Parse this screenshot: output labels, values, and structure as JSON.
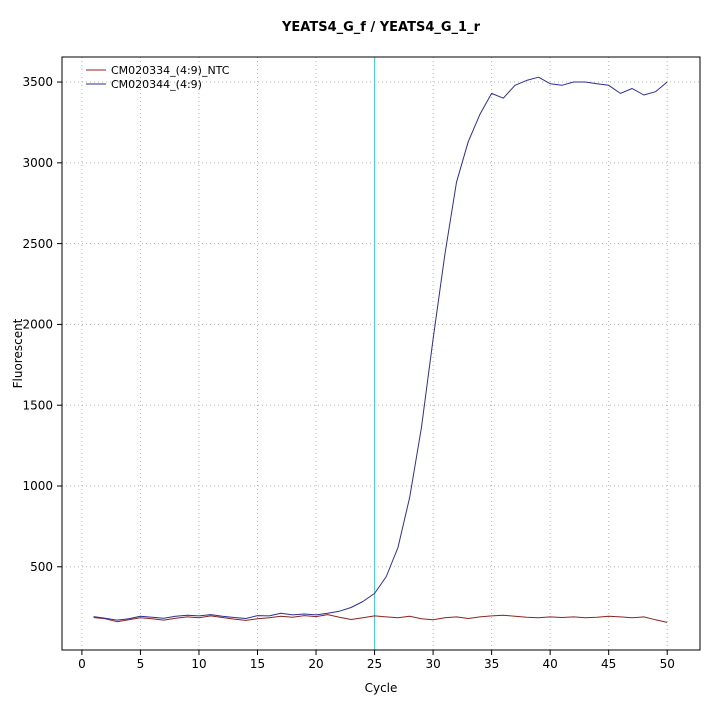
{
  "chart_data": {
    "type": "line",
    "title": "YEATS4_G_f / YEATS4_G_1_r",
    "xlabel": "Cycle",
    "ylabel": "Fluorescent",
    "xlim": [
      -1.7,
      52.8
    ],
    "ylim": [
      -15,
      3655
    ],
    "x_ticks": [
      0,
      5,
      10,
      15,
      20,
      25,
      30,
      35,
      40,
      45,
      50
    ],
    "y_ticks": [
      500,
      1000,
      1500,
      2000,
      2500,
      3000,
      3500
    ],
    "grid": "dotted",
    "grid_color": "#b3b3b3",
    "legend_position": "top-left",
    "threshold_line": {
      "x": 25,
      "color": "#00e5ee"
    },
    "x": [
      1,
      2,
      3,
      4,
      5,
      6,
      7,
      8,
      9,
      10,
      11,
      12,
      13,
      14,
      15,
      16,
      17,
      18,
      19,
      20,
      21,
      22,
      23,
      24,
      25,
      26,
      27,
      28,
      29,
      30,
      31,
      32,
      33,
      34,
      35,
      36,
      37,
      38,
      39,
      40,
      41,
      42,
      43,
      44,
      45,
      46,
      47,
      48,
      49,
      50
    ],
    "series": [
      {
        "name": "CM020334_(4:9)_NTC",
        "color": "#8b2323",
        "values": [
          186,
          178,
          160,
          172,
          184,
          178,
          170,
          182,
          190,
          184,
          196,
          186,
          176,
          168,
          178,
          184,
          194,
          188,
          198,
          192,
          204,
          188,
          174,
          184,
          196,
          190,
          184,
          194,
          178,
          172,
          184,
          190,
          180,
          190,
          196,
          200,
          194,
          188,
          184,
          190,
          186,
          190,
          184,
          188,
          194,
          190,
          184,
          190,
          172,
          156
        ]
      },
      {
        "name": "CM020344_(4:9)",
        "color": "#2f2f8f",
        "values": [
          192,
          182,
          170,
          178,
          194,
          188,
          182,
          194,
          200,
          196,
          204,
          194,
          186,
          180,
          198,
          196,
          212,
          202,
          208,
          202,
          212,
          225,
          248,
          285,
          335,
          440,
          620,
          930,
          1360,
          1910,
          2430,
          2880,
          3130,
          3300,
          3430,
          3400,
          3480,
          3510,
          3530,
          3490,
          3480,
          3500,
          3500,
          3490,
          3480,
          3430,
          3460,
          3420,
          3440,
          3500
        ]
      }
    ]
  }
}
